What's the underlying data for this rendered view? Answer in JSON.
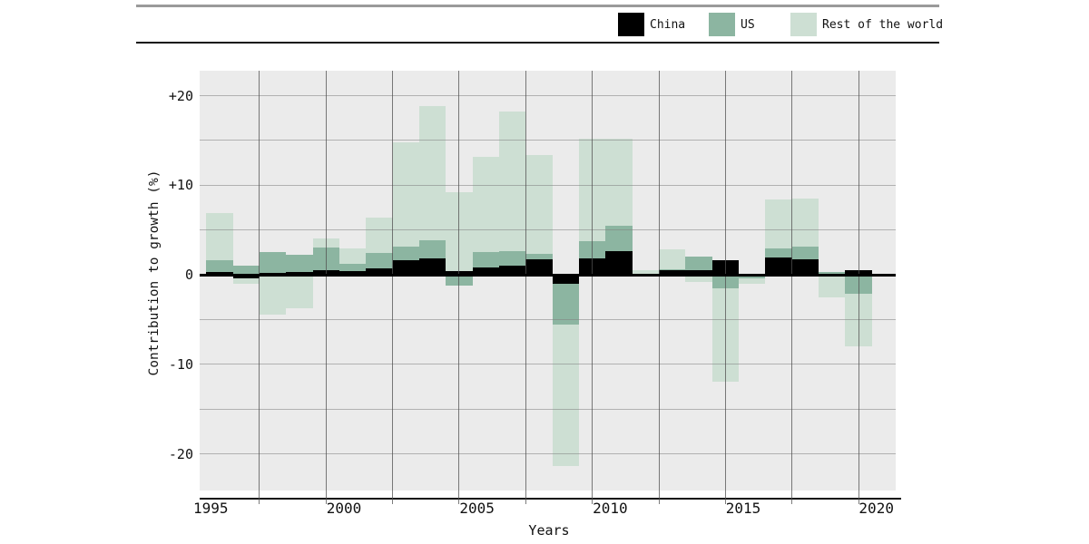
{
  "header": {
    "legend": [
      {
        "label": "China",
        "color": "#000000"
      },
      {
        "label": "US",
        "color": "#8cb5a1"
      },
      {
        "label": "Rest of the world",
        "color": "#cddfd3"
      }
    ]
  },
  "axes": {
    "y_label": "Contribution to growth (%)",
    "x_label": "Years",
    "y_ticks": [
      {
        "label": "+20",
        "value": 20
      },
      {
        "label": "+10",
        "value": 10
      },
      {
        "label": "0",
        "value": 0
      },
      {
        "label": "-10",
        "value": -10
      },
      {
        "label": "-20",
        "value": -20
      }
    ],
    "x_ticks": [
      {
        "label": "1995",
        "year": 1995
      },
      {
        "label": "2000",
        "year": 2000
      },
      {
        "label": "2005",
        "year": 2005
      },
      {
        "label": "2010",
        "year": 2010
      },
      {
        "label": "2015",
        "year": 2015
      },
      {
        "label": "2020",
        "year": 2020
      }
    ]
  },
  "chart_data": {
    "type": "bar",
    "stacked": true,
    "title": "",
    "xlabel": "Years",
    "ylabel": "Contribution to growth (%)",
    "ylim": [
      -24.1,
      22.8
    ],
    "xlim_years": [
      1994.75,
      2020.9
    ],
    "grid": "on",
    "legend_position": "top-right",
    "h_gridline_values": [
      20,
      15,
      10,
      5,
      -5,
      -10,
      -15,
      -20
    ],
    "v_gridline_years": [
      1997,
      1999.5,
      2002,
      2004.5,
      2007,
      2009.5,
      2012,
      2014.5,
      2017,
      2019.5
    ],
    "years": [
      1995,
      1996,
      1997,
      1998,
      1999,
      2000,
      2001,
      2002,
      2003,
      2004,
      2005,
      2006,
      2007,
      2008,
      2009,
      2010,
      2011,
      2012,
      2013,
      2014,
      2015,
      2016,
      2017,
      2018,
      2019
    ],
    "series": [
      {
        "name": "China",
        "color": "#000000",
        "values": [
          0.3,
          -0.4,
          0.2,
          0.3,
          0.55,
          0.45,
          0.75,
          1.6,
          1.8,
          0.45,
          0.8,
          1.0,
          1.7,
          -1.05,
          1.8,
          2.65,
          0.05,
          0.5,
          0.5,
          1.6,
          -0.1,
          1.9,
          1.75,
          0.05,
          0.55
        ]
      },
      {
        "name": "US",
        "color": "#8cb5a1",
        "values": [
          1.35,
          1.0,
          2.35,
          1.9,
          2.5,
          0.75,
          1.7,
          1.55,
          2.05,
          -1.2,
          1.7,
          1.65,
          0.65,
          -4.55,
          1.95,
          2.8,
          0.1,
          0.1,
          1.5,
          -1.5,
          -0.3,
          1.0,
          1.35,
          0.3,
          -2.15
        ]
      },
      {
        "name": "Rest of the world",
        "color": "#cddfd3",
        "values": [
          5.25,
          -0.6,
          -4.5,
          -3.7,
          1.05,
          1.7,
          3.95,
          11.65,
          15.0,
          8.75,
          10.7,
          15.55,
          11.0,
          -15.8,
          11.45,
          9.75,
          0.4,
          2.2,
          -0.85,
          -10.45,
          -0.65,
          5.5,
          5.4,
          -2.5,
          -5.85
        ]
      }
    ]
  }
}
